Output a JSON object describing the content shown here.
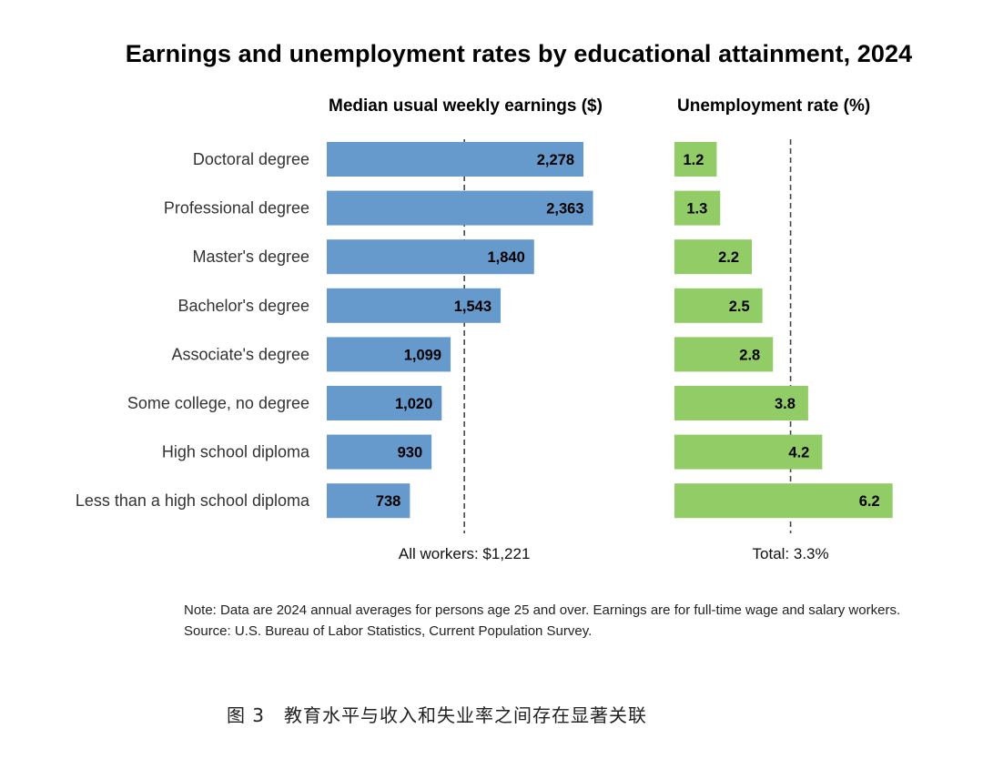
{
  "chart_data": {
    "type": "bar",
    "title": "Earnings and unemployment rates by educational attainment, 2024",
    "categories": [
      "Doctoral degree",
      "Professional degree",
      "Master's degree",
      "Bachelor's degree",
      "Associate's degree",
      "Some college, no degree",
      "High school diploma",
      "Less than a high school diploma"
    ],
    "panels": [
      {
        "name": "Median usual weekly earnings ($)",
        "values": [
          2278,
          2363,
          1840,
          1543,
          1099,
          1020,
          930,
          738
        ],
        "labels": [
          "2,278",
          "2,363",
          "1,840",
          "1,543",
          "1,099",
          "1,020",
          "930",
          "738"
        ],
        "color": "#6699cc",
        "reference_value": 1221,
        "reference_label": "All workers: $1,221"
      },
      {
        "name": "Unemployment rate (%)",
        "values": [
          1.2,
          1.3,
          2.2,
          2.5,
          2.8,
          3.8,
          4.2,
          6.2
        ],
        "labels": [
          "1.2",
          "1.3",
          "2.2",
          "2.5",
          "2.8",
          "3.8",
          "4.2",
          "6.2"
        ],
        "color": "#92cc66",
        "reference_value": 3.3,
        "reference_label": "Total: 3.3%"
      }
    ],
    "grid": false,
    "legend": "none"
  },
  "notes": {
    "note": "Note: Data are 2024 annual averages for persons age 25 and over. Earnings are for full-time wage and salary workers.",
    "source": "Source: U.S. Bureau of Labor Statistics, Current Population Survey."
  },
  "caption": "图 3　教育水平与收入和失业率之间存在显著关联"
}
